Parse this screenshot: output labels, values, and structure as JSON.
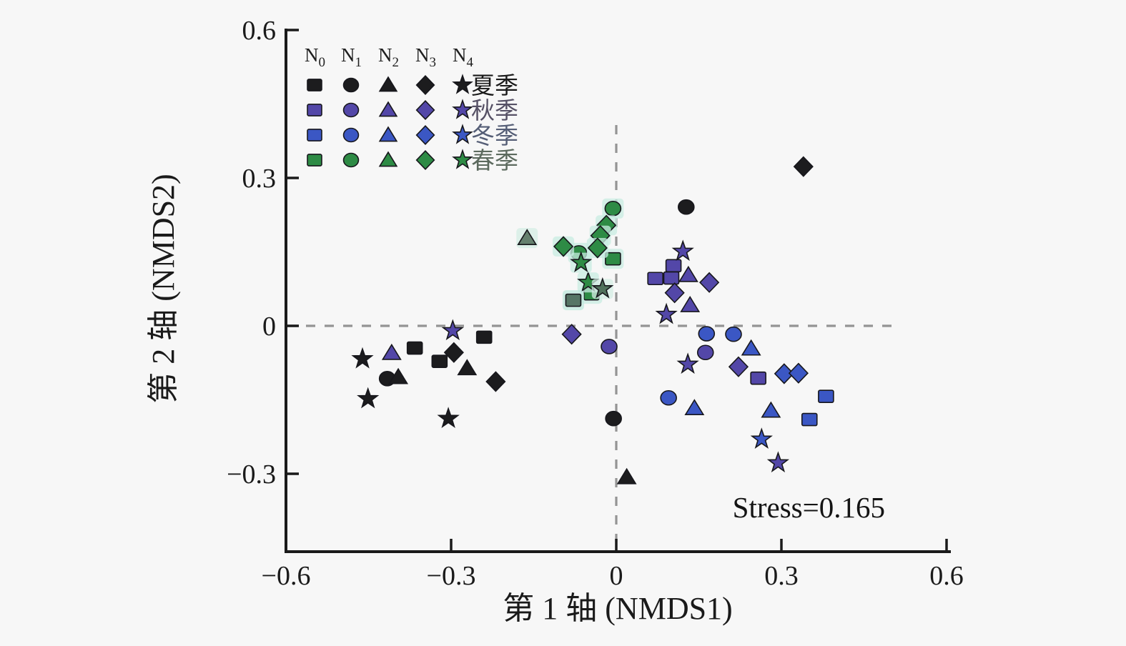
{
  "figure": {
    "background": "#f7f7f7",
    "axis_color": "#1a1a1a",
    "dashed_line_color": "#949494"
  },
  "legend": {
    "columns": [
      {
        "label": "N",
        "sub": "0",
        "shape": "square"
      },
      {
        "label": "N",
        "sub": "1",
        "shape": "circle"
      },
      {
        "label": "N",
        "sub": "2",
        "shape": "triangle"
      },
      {
        "label": "N",
        "sub": "3",
        "shape": "diamond"
      },
      {
        "label": "N",
        "sub": "4",
        "shape": "star"
      }
    ],
    "rows": [
      {
        "label": "夏季",
        "color": "#1c1c1e",
        "text_color": "#1a1a1a"
      },
      {
        "label": "秋季",
        "color": "#5347a8",
        "text_color": "#565165"
      },
      {
        "label": "冬季",
        "color": "#3b57c4",
        "text_color": "#555e76"
      },
      {
        "label": "春季",
        "color": "#2e8b45",
        "text_color": "#5c6a5e"
      }
    ]
  },
  "chart_data": {
    "type": "scatter",
    "title": "",
    "xlabel": "第 1 轴 (NMDS1)",
    "ylabel": "第 2 轴 (NMDS2)",
    "annotation": "Stress=0.165",
    "xlim": [
      -0.6,
      0.61
    ],
    "ylim": [
      -0.46,
      0.6
    ],
    "x_ticks": [
      -0.6,
      -0.3,
      0,
      0.3,
      0.6
    ],
    "x_tick_labels": [
      "−0.6",
      "−0.3",
      "0",
      "0.3",
      "0.6"
    ],
    "y_ticks": [
      0.6,
      0.3,
      0,
      -0.3
    ],
    "y_tick_labels": [
      "0.6",
      "0.3",
      "0",
      "−0.3"
    ],
    "zero_lines": {
      "horizontal": true,
      "vertical": true
    },
    "legend_position": "top-left-inside",
    "grid": false,
    "series": [
      {
        "season": "夏季",
        "level": "N0",
        "shape": "square",
        "color": "#1c1c1e",
        "points": [
          [
            -0.24,
            -0.023
          ],
          [
            -0.366,
            -0.045
          ],
          [
            -0.321,
            -0.072
          ]
        ]
      },
      {
        "season": "夏季",
        "level": "N1",
        "shape": "circle",
        "color": "#1c1c1e",
        "points": [
          [
            0.127,
            0.241
          ],
          [
            -0.416,
            -0.107
          ],
          [
            -0.005,
            -0.188
          ]
        ]
      },
      {
        "season": "夏季",
        "level": "N2",
        "shape": "triangle",
        "color": "#1c1c1e",
        "points": [
          [
            -0.271,
            -0.086
          ],
          [
            -0.396,
            -0.104
          ],
          [
            0.019,
            -0.307
          ]
        ]
      },
      {
        "season": "夏季",
        "level": "N3",
        "shape": "diamond",
        "color": "#1c1c1e",
        "points": [
          [
            0.34,
            0.323
          ],
          [
            -0.295,
            -0.054
          ],
          [
            -0.219,
            -0.113
          ]
        ]
      },
      {
        "season": "夏季",
        "level": "N4",
        "shape": "star",
        "color": "#1c1c1e",
        "points": [
          [
            -0.461,
            -0.067
          ],
          [
            -0.451,
            -0.148
          ],
          [
            -0.305,
            -0.188
          ]
        ]
      },
      {
        "season": "秋季",
        "level": "N0",
        "shape": "square",
        "color": "#5347a8",
        "points": [
          [
            0.104,
            0.122
          ],
          [
            0.071,
            0.096
          ],
          [
            0.1,
            0.097
          ],
          [
            0.258,
            -0.106
          ]
        ]
      },
      {
        "season": "秋季",
        "level": "N1",
        "shape": "circle",
        "color": "#5347a8",
        "points": [
          [
            0.162,
            -0.054
          ],
          [
            -0.013,
            -0.042
          ]
        ]
      },
      {
        "season": "秋季",
        "level": "N2",
        "shape": "triangle",
        "color": "#5347a8",
        "points": [
          [
            -0.408,
            -0.055
          ],
          [
            0.131,
            0.103
          ],
          [
            0.134,
            0.042
          ]
        ]
      },
      {
        "season": "秋季",
        "level": "N3",
        "shape": "diamond",
        "color": "#5347a8",
        "points": [
          [
            0.169,
            0.088
          ],
          [
            0.106,
            0.067
          ],
          [
            -0.081,
            -0.017
          ],
          [
            0.222,
            -0.083
          ]
        ]
      },
      {
        "season": "秋季",
        "level": "N4",
        "shape": "star",
        "color": "#5347a8",
        "points": [
          [
            -0.297,
            -0.01
          ],
          [
            0.121,
            0.151
          ],
          [
            0.091,
            0.023
          ],
          [
            0.13,
            -0.078
          ],
          [
            0.294,
            -0.278
          ]
        ]
      },
      {
        "season": "冬季",
        "level": "N0",
        "shape": "square",
        "color": "#3b57c4",
        "points": [
          [
            0.381,
            -0.143
          ],
          [
            0.351,
            -0.19
          ]
        ]
      },
      {
        "season": "冬季",
        "level": "N1",
        "shape": "circle",
        "color": "#3b57c4",
        "points": [
          [
            0.164,
            -0.016
          ],
          [
            0.213,
            -0.017
          ],
          [
            0.095,
            -0.146
          ]
        ]
      },
      {
        "season": "冬季",
        "level": "N2",
        "shape": "triangle",
        "color": "#3b57c4",
        "points": [
          [
            0.245,
            -0.046
          ],
          [
            0.142,
            -0.167
          ],
          [
            0.281,
            -0.172
          ]
        ]
      },
      {
        "season": "冬季",
        "level": "N3",
        "shape": "diamond",
        "color": "#3b57c4",
        "points": [
          [
            0.305,
            -0.097
          ],
          [
            0.331,
            -0.096
          ]
        ]
      },
      {
        "season": "冬季",
        "level": "N4",
        "shape": "star",
        "color": "#3b57c4",
        "points": [
          [
            0.264,
            -0.23
          ]
        ]
      },
      {
        "season": "春季",
        "level": "N0",
        "shape": "square",
        "color": "#2e8b45",
        "halo": "#c8ece1",
        "points": [
          [
            -0.006,
            0.136
          ],
          [
            -0.045,
            0.065
          ]
        ]
      },
      {
        "season": "春季",
        "level": "N1",
        "shape": "circle",
        "color": "#2e8b45",
        "halo": "#c8ece1",
        "points": [
          [
            -0.006,
            0.238
          ],
          [
            -0.068,
            0.148
          ]
        ]
      },
      {
        "season": "春季",
        "level": "N3",
        "shape": "diamond",
        "color": "#2e8b45",
        "halo": "#c8ece1",
        "points": [
          [
            -0.018,
            0.204
          ],
          [
            -0.029,
            0.183
          ],
          [
            -0.096,
            0.161
          ],
          [
            -0.034,
            0.158
          ]
        ]
      },
      {
        "season": "春季",
        "level": "N4",
        "shape": "star",
        "color": "#2e8b45",
        "halo": "#c8ece1",
        "points": [
          [
            -0.051,
            0.088
          ],
          [
            -0.064,
            0.128
          ]
        ]
      },
      {
        "season": "春季",
        "level": "N2",
        "shape": "triangle",
        "color": "#65806e",
        "halo": "#d4ede4",
        "points": [
          [
            -0.162,
            0.178
          ]
        ]
      },
      {
        "season": "春季",
        "level": "N0",
        "shape": "square",
        "color": "#567565",
        "halo": "#bfe8dc",
        "points": [
          [
            -0.078,
            0.052
          ]
        ]
      },
      {
        "season": "春季",
        "level": "N4",
        "shape": "star",
        "color": "#50715c",
        "halo": "#d4ede4",
        "points": [
          [
            -0.025,
            0.075
          ]
        ]
      }
    ]
  }
}
